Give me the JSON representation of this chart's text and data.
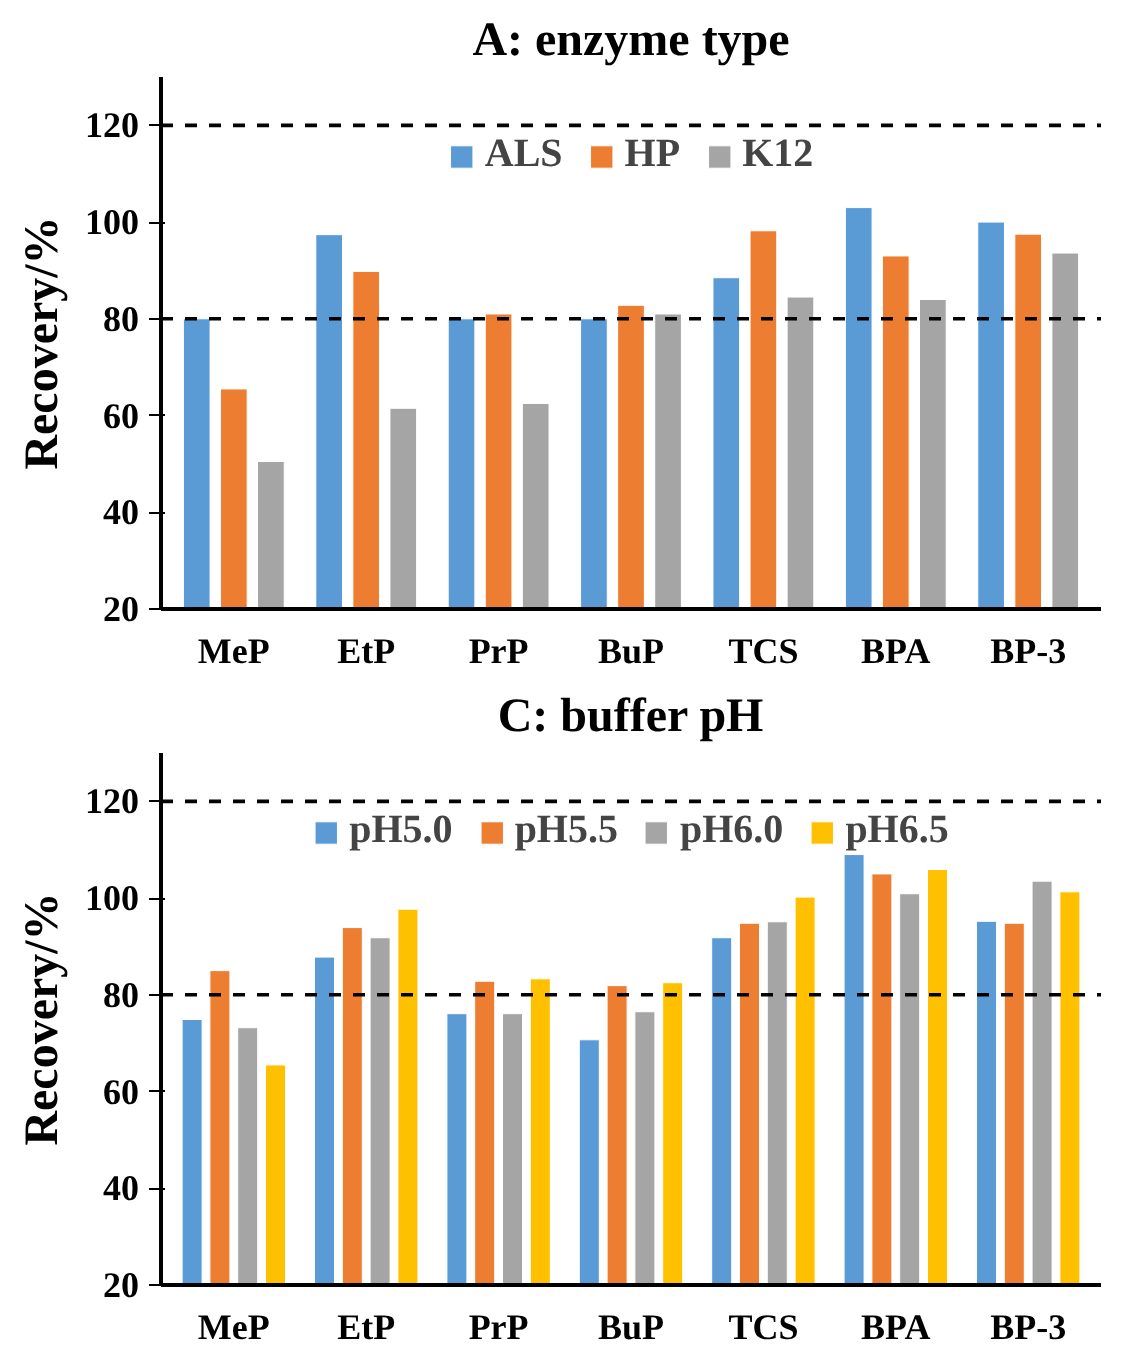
{
  "chart_data": [
    {
      "type": "bar",
      "title": "A: enzyme type",
      "ylabel": "Recovery/%",
      "categories": [
        "MeP",
        "EtP",
        "PrP",
        "BuP",
        "TCS",
        "BPA",
        "BP-3"
      ],
      "series": [
        {
          "name": "ALS",
          "color": "#5b9bd5",
          "values": [
            80,
            97.4,
            80,
            80,
            88.5,
            103,
            100
          ]
        },
        {
          "name": "HP",
          "color": "#ed7d31",
          "values": [
            65.5,
            89.8,
            81,
            82.8,
            98.2,
            93,
            97.5
          ]
        },
        {
          "name": "K12",
          "color": "#a5a5a5",
          "values": [
            50.5,
            61.5,
            62.5,
            81,
            84.5,
            84,
            93.6
          ]
        }
      ],
      "ylim": [
        20,
        130
      ],
      "yticks": [
        20,
        40,
        60,
        80,
        100,
        120
      ],
      "grid": false,
      "legend": "top",
      "ref_lines": [
        {
          "axis": "y",
          "value": 80,
          "color": "#000000",
          "line_style": "dashed"
        },
        {
          "axis": "y",
          "value": 120,
          "color": "#000000",
          "line_style": "dashed"
        }
      ]
    },
    {
      "type": "bar",
      "title": "C: buffer pH",
      "ylabel": "Recovery/%",
      "categories": [
        "MeP",
        "EtP",
        "PrP",
        "BuP",
        "TCS",
        "BPA",
        "BP-3"
      ],
      "series": [
        {
          "name": "pH5.0",
          "color": "#5b9bd5",
          "values": [
            74.9,
            87.8,
            76.1,
            70.7,
            91.8,
            109,
            95.2
          ]
        },
        {
          "name": "pH5.5",
          "color": "#ed7d31",
          "values": [
            85,
            93.9,
            82.8,
            81.9,
            94.8,
            105,
            94.8
          ]
        },
        {
          "name": "pH6.0",
          "color": "#a5a5a5",
          "values": [
            73.2,
            91.8,
            76.1,
            76.5,
            95.1,
            100.9,
            103.5
          ]
        },
        {
          "name": "pH6.5",
          "color": "#ffc000",
          "values": [
            65.5,
            97.7,
            83.3,
            82.5,
            100.2,
            105.9,
            101.3
          ]
        }
      ],
      "ylim": [
        20,
        130
      ],
      "yticks": [
        20,
        40,
        60,
        80,
        100,
        120
      ],
      "grid": false,
      "legend": "top",
      "ref_lines": [
        {
          "axis": "y",
          "value": 80,
          "color": "#000000",
          "line_style": "dashed"
        },
        {
          "axis": "y",
          "value": 120,
          "color": "#000000",
          "line_style": "dashed"
        }
      ]
    }
  ]
}
